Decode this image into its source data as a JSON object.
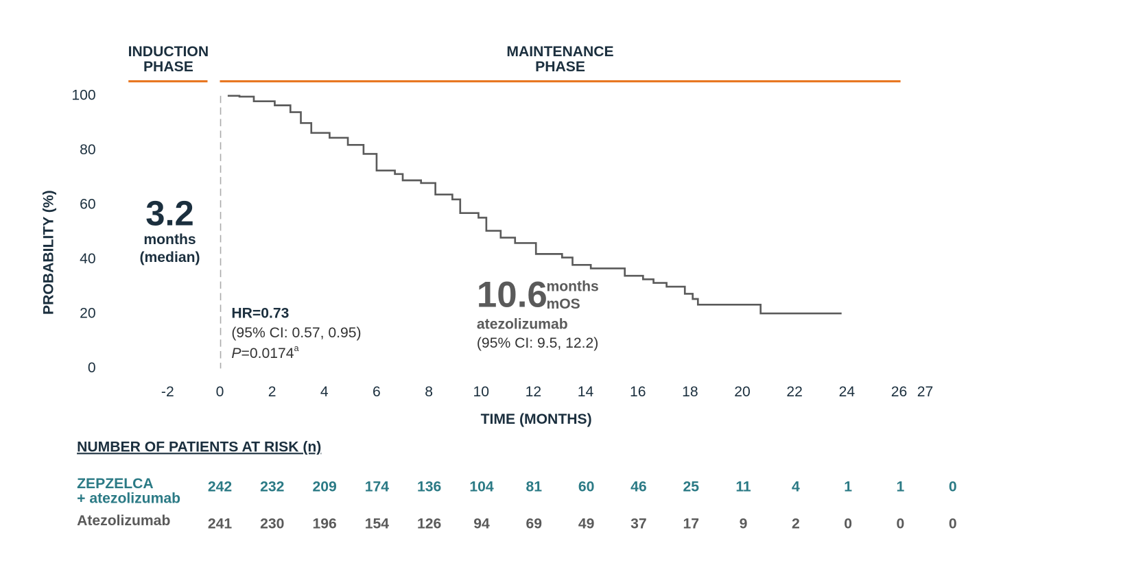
{
  "chart_data": {
    "type": "line",
    "step": true,
    "phases": [
      {
        "label": [
          "INDUCTION",
          "PHASE"
        ],
        "color": "#e87722"
      },
      {
        "label": [
          "MAINTENANCE",
          "PHASE"
        ],
        "color": "#e87722"
      }
    ],
    "ylabel": "PROBABILITY (%)",
    "xlabel": "TIME (MONTHS)",
    "xlim": [
      -2,
      27
    ],
    "xticks": [
      -2,
      0,
      2,
      4,
      6,
      8,
      10,
      12,
      14,
      16,
      18,
      20,
      22,
      24,
      26,
      27
    ],
    "ylim": [
      0,
      100
    ],
    "yticks": [
      0,
      20,
      40,
      60,
      80,
      100
    ],
    "grid": false,
    "x": [
      0.3,
      0.75,
      1.3,
      2.1,
      2.7,
      3.1,
      3.5,
      4.2,
      4.9,
      5.5,
      6.0,
      6.7,
      7.0,
      7.7,
      8.25,
      8.9,
      9.2,
      9.9,
      10.2,
      10.75,
      11.3,
      12.1,
      13.1,
      13.5,
      14.2,
      15.0,
      15.5,
      16.2,
      16.6,
      17.1,
      17.8,
      18.1,
      18.3,
      20.7,
      23.8
    ],
    "series": [
      {
        "color": "#5a5a5a",
        "values": [
          100,
          99.7,
          98,
          96.5,
          94,
          90,
          86.4,
          84.6,
          82,
          78.7,
          72.6,
          71.3,
          69,
          68,
          63.8,
          62,
          57,
          55.3,
          50.5,
          48,
          46,
          42,
          40.7,
          38,
          36.7,
          36.7,
          34,
          32.7,
          31.4,
          30,
          27.4,
          25.5,
          23.4,
          20.2,
          20.2
        ]
      }
    ],
    "annotations": {
      "induction_median": {
        "value": "3.2",
        "lines": [
          "months",
          "(median)"
        ]
      },
      "maintenance_median": {
        "value": "10.6",
        "units": [
          "months",
          "mOS"
        ],
        "lines": [
          "atezolizumab",
          "(95% CI: 9.5, 12.2)"
        ]
      },
      "hazard": {
        "hr": "HR=0.73",
        "ci": "(95% CI: 0.57, 0.95)",
        "p_italic": "P",
        "p_text": "=0.0174",
        "p_sup": "a"
      }
    },
    "risk_table": {
      "title": "NUMBER OF PATIENTS AT RISK (n)",
      "rows": [
        {
          "label": [
            "ZEPZELCA",
            "+ atezolizumab"
          ],
          "color": "#2b7a85",
          "values": [
            242,
            232,
            209,
            174,
            136,
            104,
            81,
            60,
            46,
            25,
            11,
            4,
            1,
            1,
            0
          ]
        },
        {
          "label": [
            "Atezolizumab"
          ],
          "color": "#5a5a5a",
          "values": [
            241,
            230,
            196,
            154,
            126,
            94,
            69,
            49,
            37,
            17,
            9,
            2,
            0,
            0,
            0
          ]
        }
      ]
    }
  }
}
